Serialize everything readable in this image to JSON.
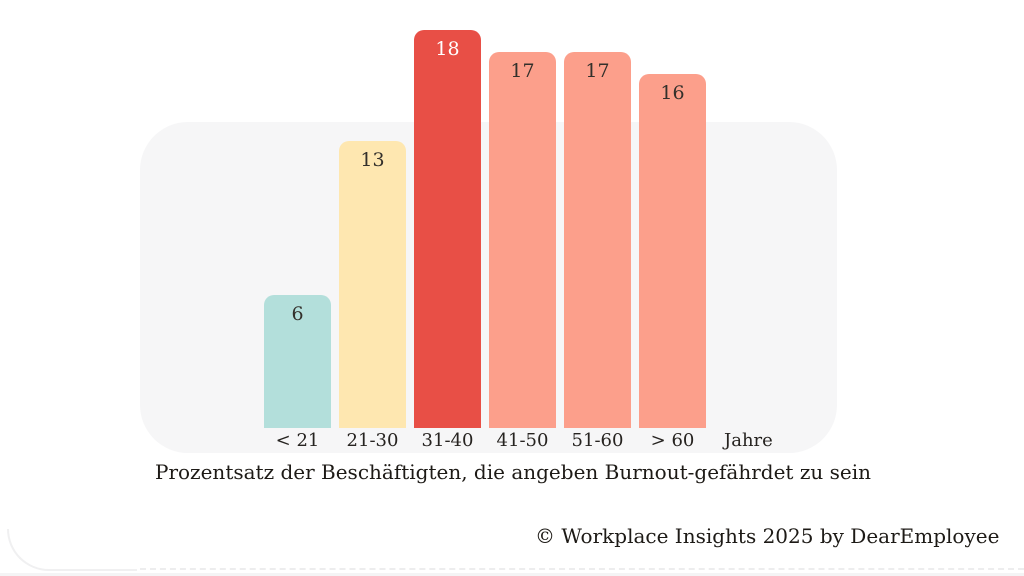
{
  "chart_data": {
    "type": "bar",
    "title": "Prozentsatz der Beschäftigten, die angeben Burnout-gefährdet zu sein",
    "categories": [
      "< 21",
      "21-30",
      "31-40",
      "41-50",
      "51-60",
      "> 60"
    ],
    "values": [
      6,
      13,
      18,
      17,
      17,
      16
    ],
    "x_unit_label": "Jahre",
    "xlabel": "Jahre",
    "ylabel": "",
    "ylim": [
      0,
      18
    ],
    "grid": false,
    "legend": false,
    "value_labels_shown": true,
    "highlighted_category": "31-40",
    "bar_colors": [
      "#b3dfdb",
      "#fee7b0",
      "#e84f46",
      "#fc9f8b",
      "#fc9f8b",
      "#fc9f8b"
    ],
    "value_label_colors": [
      "#33302b",
      "#33302b",
      "#ffffff",
      "#33302b",
      "#33302b",
      "#33302b"
    ]
  },
  "caption": "Prozentsatz der Beschäftigten, die angeben Burnout-gefährdet zu sein",
  "attribution": "© Workplace Insights 2025 by DearEmployee",
  "colors": {
    "panel_bg": "#f6f6f7",
    "background": "#ffffff",
    "text_dark": "#262320",
    "highlight_red": "#e84f46",
    "salmon": "#fc9f8b",
    "teal": "#b3dfdb",
    "yellow": "#fee7b0"
  }
}
